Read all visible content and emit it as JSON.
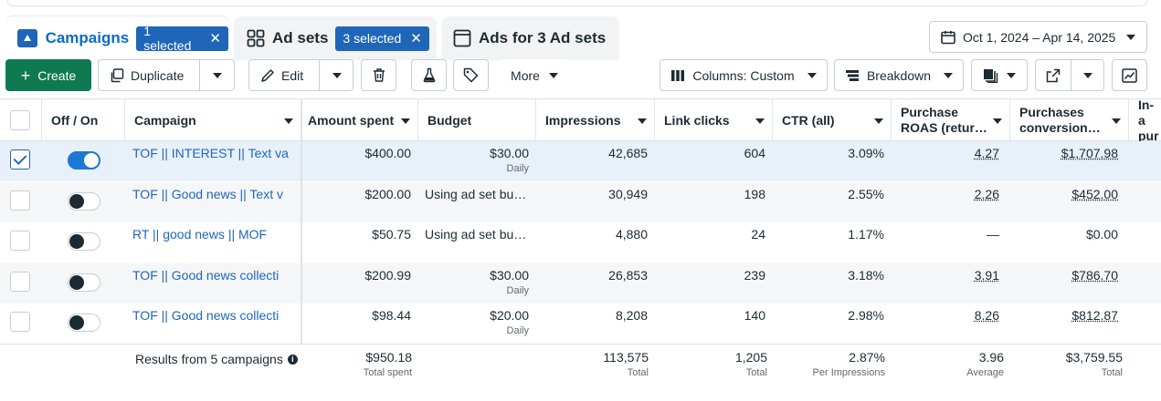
{
  "tabs": {
    "campaigns": {
      "label": "Campaigns",
      "badge": "1 selected"
    },
    "adsets": {
      "label": "Ad sets",
      "badge": "3 selected"
    },
    "ads": {
      "label": "Ads for 3 Ad sets"
    }
  },
  "date_range": "Oct 1, 2024 – Apr 14, 2025",
  "toolbar": {
    "create": "Create",
    "duplicate": "Duplicate",
    "edit": "Edit",
    "more": "More",
    "columns": "Columns: Custom",
    "breakdown": "Breakdown"
  },
  "columns": {
    "onoff": "Off / On",
    "campaign": "Campaign",
    "amount": "Amount spent",
    "budget": "Budget",
    "impressions": "Impressions",
    "clicks": "Link clicks",
    "ctr": "CTR (all)",
    "roas1": "Purchase",
    "roas2": "ROAS (retur…",
    "pcv1": "Purchases",
    "pcv2": "conversion…",
    "inapp1": "In-a",
    "inapp2": "pur"
  },
  "rows": [
    {
      "campaign": "TOF || INTEREST || Text va",
      "amount": "$400.00",
      "budget": "$30.00",
      "budget_sub": "Daily",
      "impressions": "42,685",
      "clicks": "604",
      "ctr": "3.09%",
      "roas": "4.27",
      "pcv": "$1,707.98",
      "on": true,
      "selected": true
    },
    {
      "campaign": "TOF || Good news || Text v",
      "amount": "$200.00",
      "budget": "Using ad set bu…",
      "budget_sub": "",
      "impressions": "30,949",
      "clicks": "198",
      "ctr": "2.55%",
      "roas": "2.26",
      "pcv": "$452.00",
      "on": false,
      "selected": false
    },
    {
      "campaign": "RT || good news || MOF",
      "amount": "$50.75",
      "budget": "Using ad set bu…",
      "budget_sub": "",
      "impressions": "4,880",
      "clicks": "24",
      "ctr": "1.17%",
      "roas": "—",
      "pcv": "$0.00",
      "on": false,
      "selected": false
    },
    {
      "campaign": "TOF || Good news collecti",
      "amount": "$200.99",
      "budget": "$30.00",
      "budget_sub": "Daily",
      "impressions": "26,853",
      "clicks": "239",
      "ctr": "3.18%",
      "roas": "3.91",
      "pcv": "$786.70",
      "on": false,
      "selected": false
    },
    {
      "campaign": "TOF || Good news collecti",
      "amount": "$98.44",
      "budget": "$20.00",
      "budget_sub": "Daily",
      "impressions": "8,208",
      "clicks": "140",
      "ctr": "2.98%",
      "roas": "8.26",
      "pcv": "$812.87",
      "on": false,
      "selected": false
    }
  ],
  "totals": {
    "label": "Results from 5 campaigns",
    "amount": "$950.18",
    "amount_sub": "Total spent",
    "impressions": "113,575",
    "impressions_sub": "Total",
    "clicks": "1,205",
    "clicks_sub": "Total",
    "ctr": "2.87%",
    "ctr_sub": "Per Impressions",
    "roas": "3.96",
    "roas_sub": "Average",
    "pcv": "$3,759.55",
    "pcv_sub": "Total"
  }
}
